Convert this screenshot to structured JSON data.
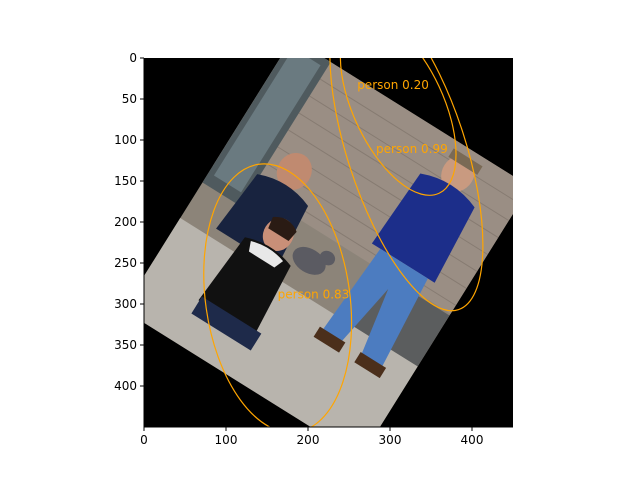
{
  "colors": {
    "annotation": "#ffa500",
    "canvas_background": "#000000",
    "axis": "#000000"
  },
  "chart_data": {
    "type": "image-with-detections",
    "xlim": [
      0,
      450
    ],
    "ylim": [
      450,
      0
    ],
    "x_ticks": [
      0,
      100,
      200,
      300,
      400
    ],
    "y_ticks": [
      0,
      50,
      100,
      150,
      200,
      250,
      300,
      350,
      400
    ],
    "detections": [
      {
        "label": "person 0.20",
        "label_x": 260,
        "label_y": 38,
        "ellipse": {
          "cx": 310,
          "cy": 58,
          "rx": 55,
          "ry": 118,
          "angle": -25
        }
      },
      {
        "label": "person 0.99",
        "label_x": 283,
        "label_y": 116,
        "ellipse": {
          "cx": 320,
          "cy": 112,
          "rx": 72,
          "ry": 205,
          "angle": -18
        }
      },
      {
        "label": "person 0.83",
        "label_x": 163,
        "label_y": 293,
        "ellipse": {
          "cx": 163,
          "cy": 293,
          "rx": 88,
          "ry": 165,
          "angle": -8
        }
      }
    ]
  }
}
